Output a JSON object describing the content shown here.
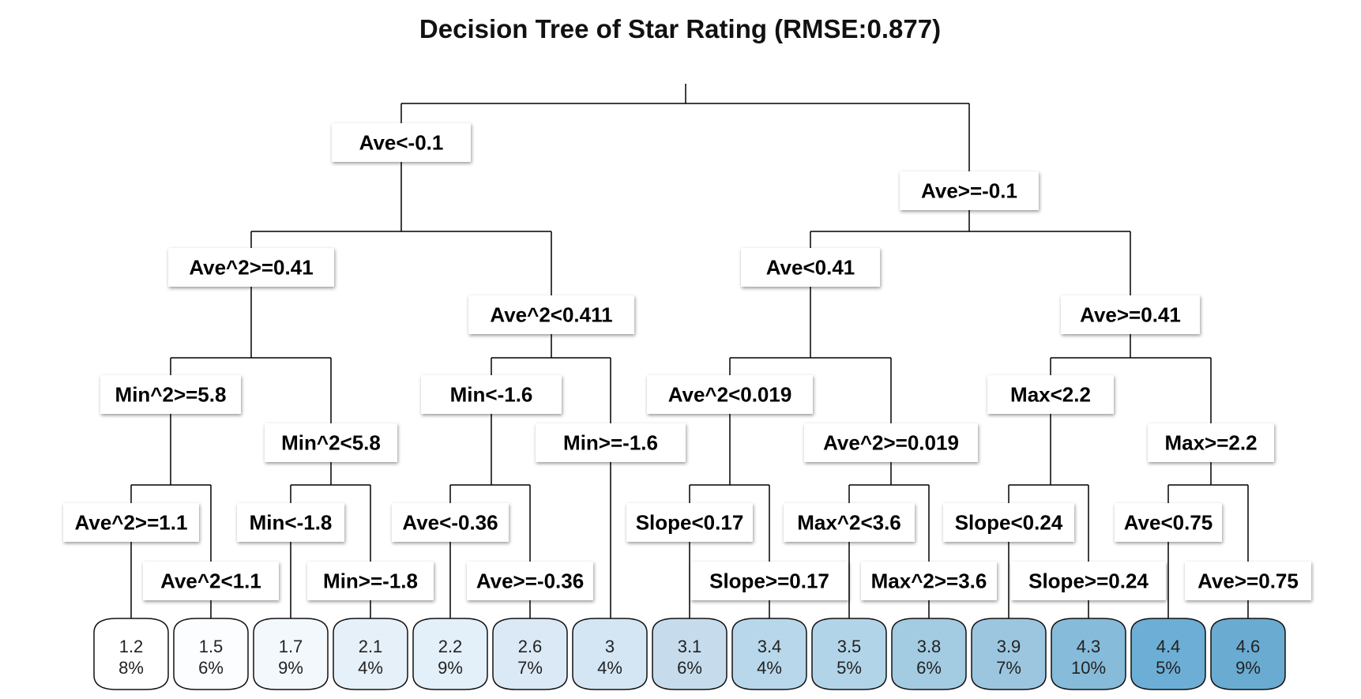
{
  "title": "Decision Tree of Star Rating (RMSE:0.877)",
  "splits": [
    {
      "id": "s-ave-lt-neg0.1",
      "label": "Ave<-0.1"
    },
    {
      "id": "s-ave-ge-neg0.1",
      "label": "Ave>=-0.1"
    },
    {
      "id": "s-ave2-ge-0.41",
      "label": "Ave^2>=0.41"
    },
    {
      "id": "s-ave2-lt-0.411",
      "label": "Ave^2<0.411"
    },
    {
      "id": "s-ave-lt-0.41",
      "label": "Ave<0.41"
    },
    {
      "id": "s-ave-ge-0.41",
      "label": "Ave>=0.41"
    },
    {
      "id": "s-min2-ge-5.8",
      "label": "Min^2>=5.8"
    },
    {
      "id": "s-min2-lt-5.8",
      "label": "Min^2<5.8"
    },
    {
      "id": "s-min-lt-neg1.6",
      "label": "Min<-1.6"
    },
    {
      "id": "s-min-ge-neg1.6",
      "label": "Min>=-1.6"
    },
    {
      "id": "s-ave2-lt-0.019",
      "label": "Ave^2<0.019"
    },
    {
      "id": "s-ave2-ge-0.019",
      "label": "Ave^2>=0.019"
    },
    {
      "id": "s-max-lt-2.2",
      "label": "Max<2.2"
    },
    {
      "id": "s-max-ge-2.2",
      "label": "Max>=2.2"
    },
    {
      "id": "s-ave2-ge-1.1",
      "label": "Ave^2>=1.1"
    },
    {
      "id": "s-ave2-lt-1.1",
      "label": "Ave^2<1.1"
    },
    {
      "id": "s-min-lt-neg1.8",
      "label": "Min<-1.8"
    },
    {
      "id": "s-min-ge-neg1.8",
      "label": "Min>=-1.8"
    },
    {
      "id": "s-ave-lt-neg0.36",
      "label": "Ave<-0.36"
    },
    {
      "id": "s-ave-ge-neg0.36",
      "label": "Ave>=-0.36"
    },
    {
      "id": "s-slope-lt-0.17",
      "label": "Slope<0.17"
    },
    {
      "id": "s-slope-ge-0.17",
      "label": "Slope>=0.17"
    },
    {
      "id": "s-max2-lt-3.6",
      "label": "Max^2<3.6"
    },
    {
      "id": "s-max2-ge-3.6",
      "label": "Max^2>=3.6"
    },
    {
      "id": "s-slope-lt-0.24",
      "label": "Slope<0.24"
    },
    {
      "id": "s-slope-ge-0.24",
      "label": "Slope>=0.24"
    },
    {
      "id": "s-ave-lt-0.75",
      "label": "Ave<0.75"
    },
    {
      "id": "s-ave-ge-0.75",
      "label": "Ave>=0.75"
    }
  ],
  "leaves": [
    {
      "value": "1.2",
      "percent": "8%",
      "color": "#ffffff"
    },
    {
      "value": "1.5",
      "percent": "6%",
      "color": "#fbfdff"
    },
    {
      "value": "1.7",
      "percent": "9%",
      "color": "#f3f8fd"
    },
    {
      "value": "2.1",
      "percent": "4%",
      "color": "#e6f0f9"
    },
    {
      "value": "2.2",
      "percent": "9%",
      "color": "#e3eff9"
    },
    {
      "value": "2.6",
      "percent": "7%",
      "color": "#dbe9f6"
    },
    {
      "value": "3",
      "percent": "4%",
      "color": "#d4e6f4"
    },
    {
      "value": "3.1",
      "percent": "6%",
      "color": "#c6dced"
    },
    {
      "value": "3.4",
      "percent": "4%",
      "color": "#b8d7ea"
    },
    {
      "value": "3.5",
      "percent": "5%",
      "color": "#b2d4e8"
    },
    {
      "value": "3.8",
      "percent": "6%",
      "color": "#a3cbe2"
    },
    {
      "value": "3.9",
      "percent": "7%",
      "color": "#9cc6df"
    },
    {
      "value": "4.3",
      "percent": "10%",
      "color": "#86bbd9"
    },
    {
      "value": "4.4",
      "percent": "5%",
      "color": "#6daed6"
    },
    {
      "value": "4.6",
      "percent": "9%",
      "color": "#6aabd2"
    }
  ]
}
